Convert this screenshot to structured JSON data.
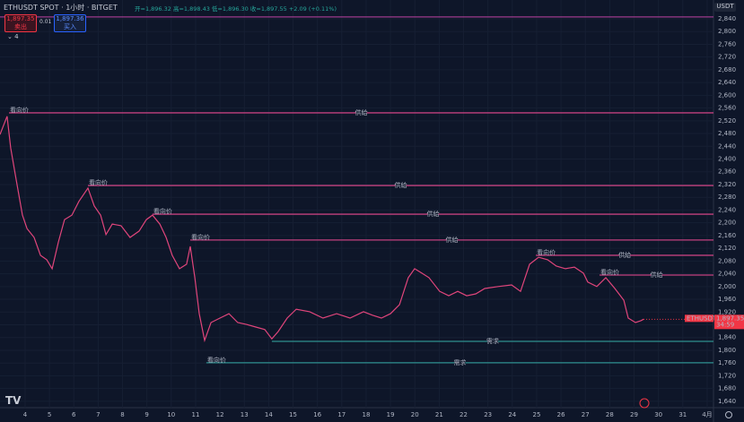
{
  "header": {
    "symbol": "ETHUSDT SPOT · 1小时 · BITGET",
    "ohlc": "开=1,896.32 高=1,898.43 低=1,896.30 收=1,897.55 +2.09 (+0.11%)",
    "sell_price": "1,897.35",
    "sell": "卖出",
    "spread": "0.01",
    "buy_price": "1,897.36",
    "buy": "买入",
    "indicator_count": "4",
    "currency": "USDT"
  },
  "chart_data": {
    "type": "line",
    "color": "#e0457b",
    "grid": true,
    "x": [
      2.97,
      3.26,
      3.41,
      3.63,
      3.89,
      4.08,
      4.37,
      4.63,
      4.89,
      5.11,
      5.37,
      5.62,
      5.92,
      6.21,
      6.58,
      6.84,
      7.1,
      7.32,
      7.58,
      7.94,
      8.31,
      8.68,
      8.98,
      9.23,
      9.53,
      9.79,
      10.04,
      10.34,
      10.63,
      10.78,
      10.97,
      11.15,
      11.37,
      11.63,
      12.0,
      12.37,
      12.73,
      13.1,
      13.47,
      13.84,
      14.13,
      14.39,
      14.76,
      15.13,
      15.68,
      16.23,
      16.79,
      17.34,
      17.89,
      18.26,
      18.63,
      19.0,
      19.37,
      19.73,
      19.99,
      20.29,
      20.58,
      21.02,
      21.39,
      21.76,
      22.13,
      22.5,
      22.87,
      23.42,
      23.97,
      24.34,
      24.71,
      25.08,
      25.45,
      25.81,
      26.18,
      26.55,
      26.92,
      27.1,
      27.47,
      27.84,
      28.21,
      28.58,
      28.76,
      29.06,
      29.28,
      29.39
    ],
    "values": [
      2477,
      2534,
      2435,
      2337,
      2224,
      2182,
      2154,
      2098,
      2084,
      2056,
      2140,
      2210,
      2224,
      2267,
      2309,
      2253,
      2224,
      2163,
      2196,
      2191,
      2154,
      2174,
      2210,
      2224,
      2196,
      2154,
      2098,
      2056,
      2070,
      2126,
      2028,
      1915,
      1831,
      1887,
      1901,
      1915,
      1887,
      1881,
      1873,
      1865,
      1836,
      1859,
      1901,
      1929,
      1921,
      1901,
      1915,
      1901,
      1921,
      1910,
      1901,
      1915,
      1943,
      2028,
      2056,
      2042,
      2028,
      1985,
      1971,
      1985,
      1971,
      1977,
      1994,
      2000,
      2005,
      1985,
      2070,
      2092,
      2084,
      2064,
      2056,
      2061,
      2042,
      2014,
      2000,
      2028,
      1994,
      1957,
      1901,
      1887,
      1893,
      1897.35
    ],
    "xlim": [
      2.97,
      32.26
    ],
    "ylim": [
      1620,
      2899
    ],
    "xticks": [
      4,
      5,
      6,
      7,
      8,
      9,
      10,
      11,
      12,
      13,
      14,
      15,
      16,
      17,
      18,
      19,
      20,
      21,
      22,
      23,
      24,
      25,
      26,
      27,
      28,
      29,
      30,
      31,
      {
        "value": 32,
        "label": "4月"
      }
    ],
    "yticks": [
      {
        "value": 1640,
        "label": "1,640"
      },
      {
        "value": 1680,
        "label": "1,680"
      },
      {
        "value": 1720,
        "label": "1,720"
      },
      {
        "value": 1760,
        "label": "1,760"
      },
      {
        "value": 1800,
        "label": "1,800"
      },
      {
        "value": 1840,
        "label": "1,840"
      },
      {
        "value": 1880,
        "label": "1,880"
      },
      {
        "value": 1920,
        "label": "1,920"
      },
      {
        "value": 1960,
        "label": "1,960"
      },
      {
        "value": 2000,
        "label": "2,000"
      },
      {
        "value": 2040,
        "label": "2,040"
      },
      {
        "value": 2080,
        "label": "2,080"
      },
      {
        "value": 2120,
        "label": "2,120"
      },
      {
        "value": 2160,
        "label": "2,160"
      },
      {
        "value": 2200,
        "label": "2,200"
      },
      {
        "value": 2240,
        "label": "2,240"
      },
      {
        "value": 2280,
        "label": "2,280"
      },
      {
        "value": 2320,
        "label": "2,320"
      },
      {
        "value": 2360,
        "label": "2,360"
      },
      {
        "value": 2400,
        "label": "2,400"
      },
      {
        "value": 2440,
        "label": "2,440"
      },
      {
        "value": 2480,
        "label": "2,480"
      },
      {
        "value": 2520,
        "label": "2,520"
      },
      {
        "value": 2560,
        "label": "2,560"
      },
      {
        "value": 2600,
        "label": "2,600"
      },
      {
        "value": 2640,
        "label": "2,640"
      },
      {
        "value": 2680,
        "label": "2,680"
      },
      {
        "value": 2720,
        "label": "2,720"
      },
      {
        "value": 2760,
        "label": "2,760"
      },
      {
        "value": 2800,
        "label": "2,800"
      },
      {
        "value": 2840,
        "label": "2,840"
      }
    ],
    "levels": [
      {
        "value": 2846,
        "from": 2.97,
        "color": "#9c3a8c"
      },
      {
        "value": 2545,
        "from": 3.34,
        "color": "#c2407f",
        "start_label": "看向价",
        "label": "供給"
      },
      {
        "value": 2317,
        "from": 6.58,
        "color": "#c2407f",
        "start_label": "看向价",
        "label": "供給"
      },
      {
        "value": 2227,
        "from": 9.23,
        "color": "#c2407f",
        "start_label": "看向价",
        "label": "供給"
      },
      {
        "value": 2146,
        "from": 10.78,
        "color": "#c2407f",
        "start_label": "看向价",
        "label": "供給"
      },
      {
        "value": 2098,
        "from": 24.97,
        "color": "#c2407f",
        "start_label": "看向价",
        "label": "供給"
      },
      {
        "value": 2036,
        "from": 27.58,
        "color": "#c2407f",
        "start_label": "看向价",
        "label": "供給"
      },
      {
        "value": 1828,
        "from": 14.13,
        "color": "#2e8f8f",
        "label": "需求"
      },
      {
        "value": 1761,
        "from": 11.44,
        "color": "#2e8f8f",
        "start_label": "看向价",
        "label": "需求"
      }
    ],
    "last_price": {
      "symbol": "ETHUSDT",
      "price": "1,897.35",
      "countdown": "34:59"
    }
  }
}
